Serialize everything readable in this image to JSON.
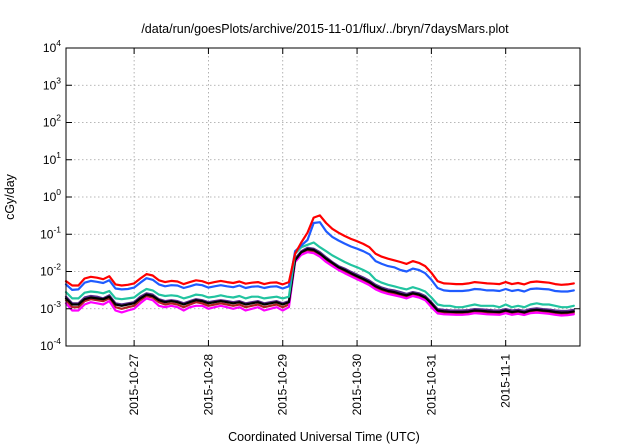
{
  "chart_data": {
    "type": "line",
    "title": "/data/run/goesPlots/archive/2015-11-01/flux/../bryn/7daysMars.plot",
    "xlabel": "Coordinated Universal Time (UTC)",
    "ylabel": "cGy/day",
    "y_scale": "log",
    "ylim": [
      0.0001,
      10000
    ],
    "xlim": [
      "2015-10-26 02:00",
      "2015-11-02 00:00"
    ],
    "grid": true,
    "y_ticks": [
      {
        "value": 0.0001,
        "base": "10",
        "exp": "-4"
      },
      {
        "value": 0.001,
        "base": "10",
        "exp": "-3"
      },
      {
        "value": 0.01,
        "base": "10",
        "exp": "-2"
      },
      {
        "value": 0.1,
        "base": "10",
        "exp": "-1"
      },
      {
        "value": 1,
        "base": "10",
        "exp": "0"
      },
      {
        "value": 10,
        "base": "10",
        "exp": "1"
      },
      {
        "value": 100,
        "base": "10",
        "exp": "2"
      },
      {
        "value": 1000,
        "base": "10",
        "exp": "3"
      },
      {
        "value": 10000,
        "base": "10",
        "exp": "4"
      }
    ],
    "x_ticks": [
      {
        "label": "2015-10-27",
        "time": "2015-10-27 00:00"
      },
      {
        "label": "2015-10-28",
        "time": "2015-10-28 00:00"
      },
      {
        "label": "2015-10-29",
        "time": "2015-10-29 00:00"
      },
      {
        "label": "2015-10-30",
        "time": "2015-10-30 00:00"
      },
      {
        "label": "2015-10-31",
        "time": "2015-10-31 00:00"
      },
      {
        "label": "2015-11-1",
        "time": "2015-11-01 00:00"
      }
    ],
    "x": [
      "2015-10-26 02:00",
      "2015-10-26 04:00",
      "2015-10-26 06:00",
      "2015-10-26 08:00",
      "2015-10-26 10:00",
      "2015-10-26 12:00",
      "2015-10-26 14:00",
      "2015-10-26 16:00",
      "2015-10-26 18:00",
      "2015-10-26 20:00",
      "2015-10-26 22:00",
      "2015-10-27 00:00",
      "2015-10-27 02:00",
      "2015-10-27 04:00",
      "2015-10-27 06:00",
      "2015-10-27 08:00",
      "2015-10-27 10:00",
      "2015-10-27 12:00",
      "2015-10-27 14:00",
      "2015-10-27 16:00",
      "2015-10-27 18:00",
      "2015-10-27 20:00",
      "2015-10-27 22:00",
      "2015-10-28 00:00",
      "2015-10-28 02:00",
      "2015-10-28 04:00",
      "2015-10-28 06:00",
      "2015-10-28 08:00",
      "2015-10-28 10:00",
      "2015-10-28 12:00",
      "2015-10-28 14:00",
      "2015-10-28 16:00",
      "2015-10-28 18:00",
      "2015-10-28 20:00",
      "2015-10-28 22:00",
      "2015-10-29 00:00",
      "2015-10-29 02:00",
      "2015-10-29 04:00",
      "2015-10-29 06:00",
      "2015-10-29 08:00",
      "2015-10-29 10:00",
      "2015-10-29 12:00",
      "2015-10-29 14:00",
      "2015-10-29 16:00",
      "2015-10-29 18:00",
      "2015-10-29 20:00",
      "2015-10-29 22:00",
      "2015-10-30 00:00",
      "2015-10-30 02:00",
      "2015-10-30 04:00",
      "2015-10-30 06:00",
      "2015-10-30 08:00",
      "2015-10-30 10:00",
      "2015-10-30 12:00",
      "2015-10-30 14:00",
      "2015-10-30 16:00",
      "2015-10-30 18:00",
      "2015-10-30 20:00",
      "2015-10-30 22:00",
      "2015-10-31 00:00",
      "2015-10-31 02:00",
      "2015-10-31 04:00",
      "2015-10-31 06:00",
      "2015-10-31 08:00",
      "2015-10-31 10:00",
      "2015-10-31 12:00",
      "2015-10-31 14:00",
      "2015-10-31 16:00",
      "2015-10-31 18:00",
      "2015-10-31 20:00",
      "2015-10-31 22:00",
      "2015-11-01 00:00",
      "2015-11-01 02:00",
      "2015-11-01 04:00",
      "2015-11-01 06:00",
      "2015-11-01 08:00",
      "2015-11-01 10:00",
      "2015-11-01 12:00",
      "2015-11-01 14:00",
      "2015-11-01 16:00",
      "2015-11-01 18:00",
      "2015-11-01 20:00",
      "2015-11-01 22:00"
    ],
    "series": [
      {
        "color": "#ff0000",
        "values": [
          0.0055,
          0.0042,
          0.0042,
          0.0065,
          0.0072,
          0.0068,
          0.0062,
          0.0075,
          0.0045,
          0.0042,
          0.0044,
          0.0048,
          0.0065,
          0.0085,
          0.0078,
          0.0058,
          0.0052,
          0.0056,
          0.0054,
          0.0046,
          0.0052,
          0.0058,
          0.0055,
          0.0048,
          0.0052,
          0.0056,
          0.0052,
          0.0049,
          0.0054,
          0.0047,
          0.005,
          0.0052,
          0.0046,
          0.005,
          0.0051,
          0.0045,
          0.0052,
          0.03,
          0.06,
          0.11,
          0.28,
          0.32,
          0.2,
          0.14,
          0.11,
          0.09,
          0.075,
          0.065,
          0.055,
          0.045,
          0.03,
          0.025,
          0.022,
          0.02,
          0.018,
          0.016,
          0.019,
          0.017,
          0.014,
          0.0092,
          0.0055,
          0.0048,
          0.0047,
          0.0046,
          0.0046,
          0.0048,
          0.0052,
          0.005,
          0.0048,
          0.0047,
          0.0046,
          0.0052,
          0.0046,
          0.0049,
          0.0045,
          0.0052,
          0.0054,
          0.0052,
          0.005,
          0.0046,
          0.0044,
          0.0045,
          0.0048
        ]
      },
      {
        "color": "#1f5bff",
        "values": [
          0.0045,
          0.0032,
          0.0033,
          0.005,
          0.0056,
          0.0053,
          0.0049,
          0.0058,
          0.0035,
          0.0033,
          0.0034,
          0.0037,
          0.005,
          0.0066,
          0.006,
          0.0045,
          0.004,
          0.0043,
          0.0042,
          0.0036,
          0.004,
          0.0045,
          0.0043,
          0.0037,
          0.004,
          0.0043,
          0.004,
          0.0038,
          0.0042,
          0.0036,
          0.0039,
          0.004,
          0.0036,
          0.0039,
          0.004,
          0.0035,
          0.004,
          0.035,
          0.05,
          0.07,
          0.2,
          0.21,
          0.12,
          0.085,
          0.068,
          0.056,
          0.047,
          0.041,
          0.035,
          0.029,
          0.019,
          0.016,
          0.014,
          0.013,
          0.011,
          0.01,
          0.012,
          0.011,
          0.009,
          0.006,
          0.0036,
          0.0031,
          0.003,
          0.003,
          0.003,
          0.0031,
          0.0034,
          0.0033,
          0.0031,
          0.0031,
          0.003,
          0.0034,
          0.003,
          0.0032,
          0.0029,
          0.0034,
          0.0035,
          0.0034,
          0.0033,
          0.003,
          0.0029,
          0.0029,
          0.0031
        ]
      },
      {
        "color": "#22c4a0",
        "values": [
          0.0028,
          0.0019,
          0.0019,
          0.0027,
          0.0029,
          0.0028,
          0.0026,
          0.003,
          0.0019,
          0.0018,
          0.0019,
          0.002,
          0.0027,
          0.0034,
          0.0031,
          0.0024,
          0.0022,
          0.0023,
          0.0022,
          0.0019,
          0.0021,
          0.0024,
          0.0023,
          0.002,
          0.0021,
          0.0023,
          0.0021,
          0.002,
          0.0022,
          0.0019,
          0.0021,
          0.0021,
          0.0019,
          0.002,
          0.0021,
          0.0019,
          0.0021,
          0.03,
          0.045,
          0.052,
          0.06,
          0.045,
          0.035,
          0.027,
          0.022,
          0.018,
          0.015,
          0.013,
          0.011,
          0.009,
          0.006,
          0.005,
          0.0044,
          0.004,
          0.0036,
          0.0033,
          0.0038,
          0.0034,
          0.0029,
          0.002,
          0.0013,
          0.0012,
          0.0012,
          0.0011,
          0.0011,
          0.0012,
          0.0013,
          0.0012,
          0.0012,
          0.0012,
          0.0011,
          0.0013,
          0.0011,
          0.0012,
          0.0011,
          0.0013,
          0.0014,
          0.0013,
          0.0013,
          0.0012,
          0.0011,
          0.0011,
          0.0012
        ]
      },
      {
        "color": "#000000",
        "values": [
          0.0019,
          0.0013,
          0.0013,
          0.0018,
          0.002,
          0.0019,
          0.0018,
          0.0021,
          0.0013,
          0.0012,
          0.0013,
          0.0014,
          0.0019,
          0.0024,
          0.0022,
          0.0017,
          0.0015,
          0.0016,
          0.0015,
          0.0013,
          0.0015,
          0.0017,
          0.0016,
          0.0014,
          0.0015,
          0.0016,
          0.0015,
          0.0014,
          0.0015,
          0.0013,
          0.0014,
          0.0015,
          0.0013,
          0.0014,
          0.0015,
          0.0013,
          0.0015,
          0.02,
          0.033,
          0.04,
          0.038,
          0.03,
          0.022,
          0.017,
          0.013,
          0.011,
          0.009,
          0.0075,
          0.0063,
          0.0052,
          0.004,
          0.0034,
          0.003,
          0.0028,
          0.0025,
          0.0023,
          0.0026,
          0.0024,
          0.002,
          0.0014,
          0.0009,
          0.00085,
          0.00083,
          0.00082,
          0.00082,
          0.00084,
          0.0009,
          0.00088,
          0.00085,
          0.00083,
          0.00082,
          0.0009,
          0.00082,
          0.00086,
          0.0008,
          0.0009,
          0.00094,
          0.0009,
          0.00087,
          0.00082,
          0.00079,
          0.0008,
          0.00085
        ]
      },
      {
        "color": "#ff00ff",
        "values": [
          0.0014,
          0.0009,
          0.0009,
          0.0013,
          0.0015,
          0.0014,
          0.0013,
          0.0016,
          0.0009,
          0.0008,
          0.0009,
          0.001,
          0.0014,
          0.0019,
          0.0017,
          0.0012,
          0.0011,
          0.0012,
          0.0011,
          0.0009,
          0.0011,
          0.0012,
          0.0012,
          0.001,
          0.0011,
          0.0012,
          0.0011,
          0.001,
          0.0011,
          0.0009,
          0.001,
          0.0011,
          0.0009,
          0.001,
          0.0011,
          0.0009,
          0.0011,
          0.018,
          0.028,
          0.033,
          0.031,
          0.025,
          0.018,
          0.014,
          0.011,
          0.009,
          0.0075,
          0.0062,
          0.0052,
          0.0043,
          0.0033,
          0.0028,
          0.0025,
          0.0023,
          0.0021,
          0.0019,
          0.0022,
          0.002,
          0.0017,
          0.0011,
          0.00075,
          0.00071,
          0.0007,
          0.00069,
          0.00069,
          0.00071,
          0.00076,
          0.00074,
          0.00071,
          0.0007,
          0.00069,
          0.00076,
          0.00069,
          0.00073,
          0.00068,
          0.00076,
          0.00079,
          0.00076,
          0.00073,
          0.00069,
          0.00066,
          0.00067,
          0.00071
        ]
      },
      {
        "color": "#b22222",
        "values": [
          0.0017,
          0.0011,
          0.0011,
          0.0016,
          0.0018,
          0.0017,
          0.0016,
          0.0019,
          0.0011,
          0.001,
          0.0011,
          0.0012,
          0.0017,
          0.0022,
          0.002,
          0.0015,
          0.0013,
          0.0014,
          0.0013,
          0.0011,
          0.0013,
          0.0015,
          0.0014,
          0.0012,
          0.0013,
          0.0014,
          0.0013,
          0.0012,
          0.0013,
          0.0011,
          0.0012,
          0.0013,
          0.0011,
          0.0012,
          0.0013,
          0.0011,
          0.0013,
          0.019,
          0.03,
          0.036,
          0.034,
          0.027,
          0.02,
          0.015,
          0.012,
          0.01,
          0.0082,
          0.0068,
          0.0057,
          0.0047,
          0.0036,
          0.0031,
          0.0027,
          0.0025,
          0.0023,
          0.0021,
          0.0024,
          0.0022,
          0.0018,
          0.0012,
          0.00082,
          0.00078,
          0.00076,
          0.00075,
          0.00075,
          0.00078,
          0.00083,
          0.00081,
          0.00078,
          0.00076,
          0.00075,
          0.00083,
          0.00075,
          0.00079,
          0.00074,
          0.00083,
          0.00087,
          0.00083,
          0.0008,
          0.00075,
          0.00072,
          0.00073,
          0.00078
        ]
      },
      {
        "color": "#5a2a8a",
        "values": [
          0.0021,
          0.0014,
          0.0014,
          0.002,
          0.0022,
          0.0021,
          0.0019,
          0.0023,
          0.0014,
          0.0013,
          0.0014,
          0.0015,
          0.0021,
          0.0026,
          0.0024,
          0.0018,
          0.0016,
          0.0017,
          0.0016,
          0.0014,
          0.0016,
          0.0018,
          0.0017,
          0.0015,
          0.0016,
          0.0017,
          0.0016,
          0.0015,
          0.0016,
          0.0014,
          0.0015,
          0.0016,
          0.0014,
          0.0015,
          0.0016,
          0.0014,
          0.0016,
          0.022,
          0.035,
          0.043,
          0.041,
          0.033,
          0.024,
          0.018,
          0.014,
          0.012,
          0.0098,
          0.0082,
          0.0069,
          0.0057,
          0.0044,
          0.0037,
          0.0033,
          0.0031,
          0.0028,
          0.0025,
          0.0028,
          0.0026,
          0.0022,
          0.0015,
          0.00098,
          0.00093,
          0.00091,
          0.0009,
          0.0009,
          0.00092,
          0.00098,
          0.00096,
          0.00093,
          0.00091,
          0.0009,
          0.00098,
          0.0009,
          0.00094,
          0.00088,
          0.00098,
          0.00103,
          0.00098,
          0.00095,
          0.0009,
          0.00087,
          0.00088,
          0.00093
        ]
      }
    ]
  }
}
